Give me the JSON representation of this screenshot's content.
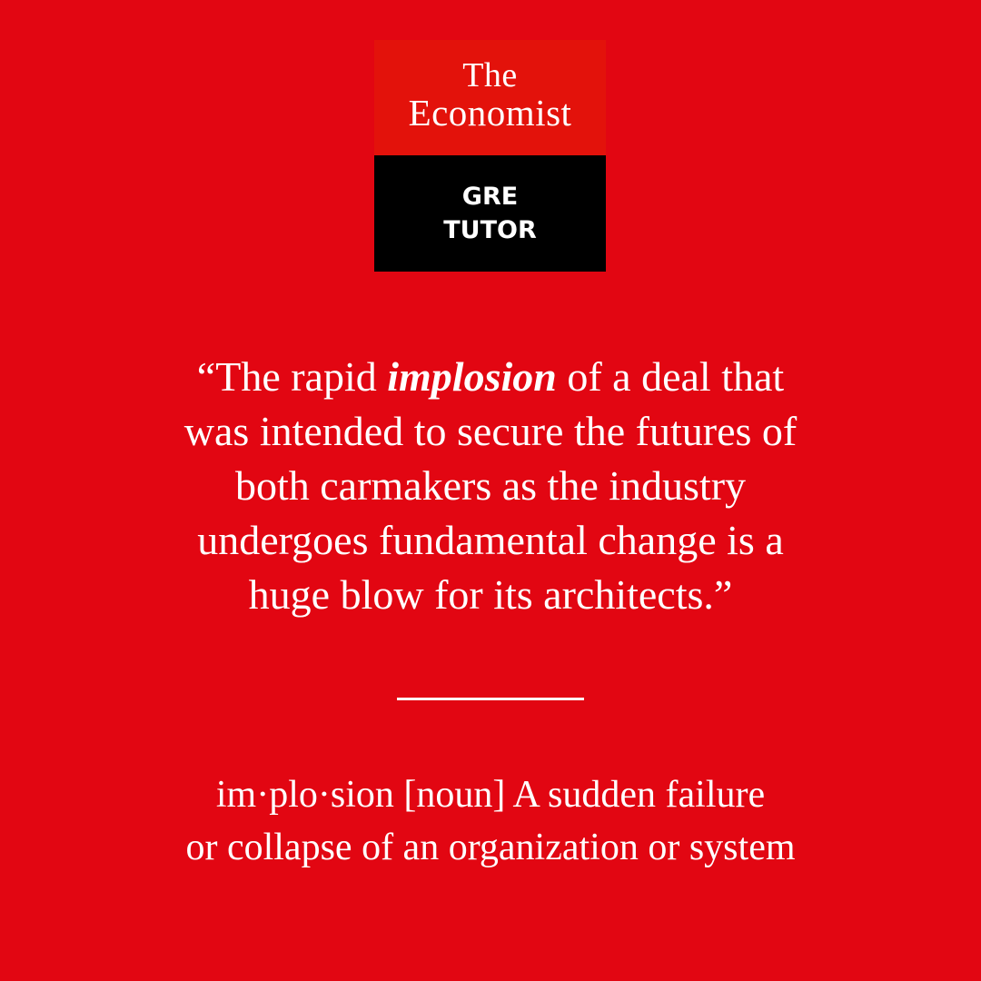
{
  "logo": {
    "line1": "The",
    "line2": "Economist",
    "sub_line1": "GRE",
    "sub_line2": "TUTOR"
  },
  "quote": {
    "open": "“The rapid ",
    "emphasis": "implosion",
    "rest_line1": " of a deal that",
    "line2": "was intended to secure the futures of",
    "line3": "both carmakers as the industry",
    "line4": "undergoes fundamental change is a",
    "line5": "huge blow for its architects.”"
  },
  "definition": {
    "line1": "im·plo·sion [noun] A sudden failure",
    "line2": "or collapse of an organization or system"
  },
  "colors": {
    "background": "#e20612",
    "logo_red": "#e3120b",
    "logo_black": "#000000",
    "text": "#ffffff"
  }
}
